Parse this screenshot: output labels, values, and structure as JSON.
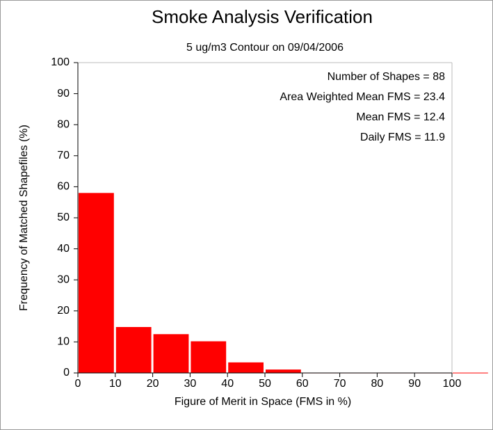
{
  "chart_data": {
    "type": "histogram",
    "title": "Smoke Analysis Verification",
    "subtitle": "5 ug/m3 Contour on 09/04/2006",
    "x_label": "Figure of Merit in Space (FMS in %)",
    "y_label": "Frequency of Matched Shapefiles (%)",
    "annotations": [
      "Number of Shapes = 88",
      "Area Weighted Mean FMS = 23.4",
      "Mean FMS = 12.4",
      "Daily FMS = 11.9"
    ],
    "bins": [
      0,
      10,
      20,
      30,
      40,
      50,
      60,
      70,
      80,
      90,
      100,
      110
    ],
    "values": [
      58,
      14.8,
      12.5,
      10.2,
      3.4,
      1.1,
      0.1,
      0.1,
      0.1,
      0.1,
      0.1
    ],
    "color": "#ff0000",
    "xlim": [
      0,
      100
    ],
    "xticks": [
      0,
      10,
      20,
      30,
      40,
      50,
      60,
      70,
      80,
      90,
      100
    ],
    "ylim": [
      0,
      100
    ],
    "yticks": [
      0,
      10,
      20,
      30,
      40,
      50,
      60,
      70,
      80,
      90,
      100
    ]
  }
}
